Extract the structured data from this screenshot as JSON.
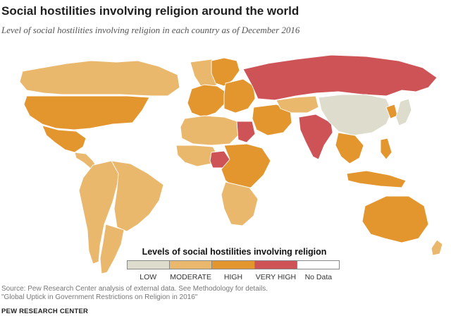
{
  "header": {
    "title": "Social hostilities involving religion around the world",
    "subtitle": "Level of social hostilities involving religion in each country as of December 2016"
  },
  "map": {
    "colors": {
      "ocean": "#ffffff",
      "low": "#dedccc",
      "moderate": "#eab86c",
      "high": "#e4962e",
      "very_high": "#cd5357",
      "no_data": "#ffffff"
    },
    "levels": {
      "north_america_usa_mexico": "high",
      "canada": "moderate",
      "greenland": "moderate",
      "central_america": "moderate",
      "south_america": "moderate",
      "brazil": "moderate",
      "western_europe": "high",
      "eastern_europe": "high",
      "russia": "very_high",
      "north_africa_west": "moderate",
      "egypt": "very_high",
      "west_africa": "moderate",
      "nigeria": "very_high",
      "central_africa": "high",
      "southern_africa": "moderate",
      "middle_east": "high",
      "central_asia": "moderate",
      "india": "very_high",
      "china": "low",
      "southeast_asia": "high",
      "japan": "low",
      "australia": "high",
      "new_zealand": "moderate"
    }
  },
  "legend": {
    "title": "Levels of social hostilities involving religion",
    "items": [
      {
        "label": "LOW",
        "color": "#dedccc"
      },
      {
        "label": "MODERATE",
        "color": "#eab86c"
      },
      {
        "label": "HIGH",
        "color": "#e4962e"
      },
      {
        "label": "VERY HIGH",
        "color": "#cd5357"
      },
      {
        "label": "No Data",
        "color": "#ffffff"
      }
    ]
  },
  "source": {
    "line1": "Source: Pew Research Center analysis of external data. See Methodology for details.",
    "line2": "\"Global Uptick in Government Restrictions on Religion in 2016\""
  },
  "credit": "PEW RESEARCH CENTER"
}
